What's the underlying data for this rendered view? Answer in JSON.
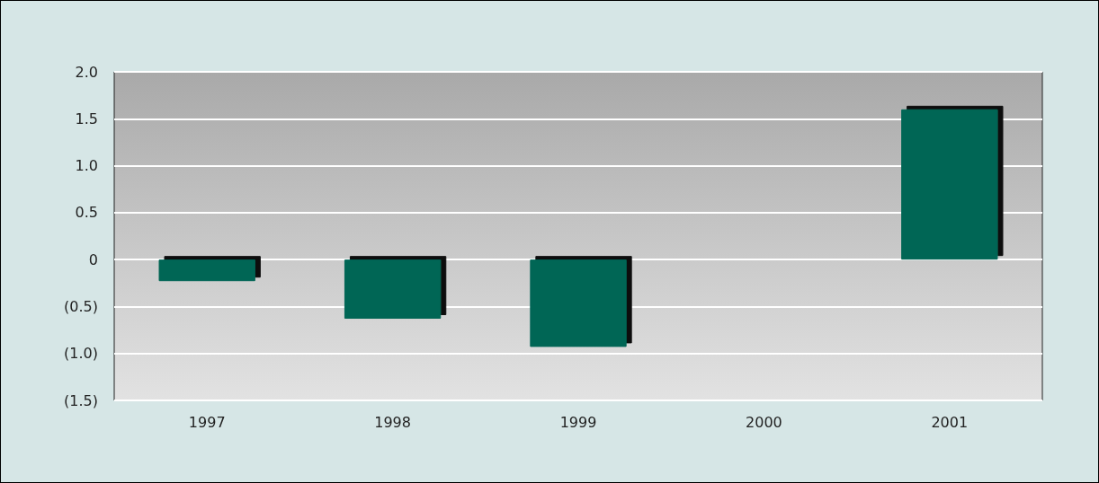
{
  "chart_data": {
    "type": "bar",
    "categories": [
      "1997",
      "1998",
      "1999",
      "2000",
      "2001"
    ],
    "values": [
      -0.23,
      -0.63,
      -0.93,
      0,
      1.6
    ],
    "color": "#006655",
    "ylim": [
      -1.5,
      2.0
    ],
    "yticks": [
      {
        "value": -1.5,
        "label": "(1.5)"
      },
      {
        "value": -1.0,
        "label": "(1.0)"
      },
      {
        "value": -0.5,
        "label": "(0.5)"
      },
      0,
      {
        "value": 0.5,
        "label": "0.5"
      },
      {
        "value": 1.0,
        "label": "1.0"
      },
      {
        "value": 1.5,
        "label": "1.5"
      },
      {
        "value": 2.0,
        "label": "2.0"
      }
    ],
    "grid": "y"
  }
}
